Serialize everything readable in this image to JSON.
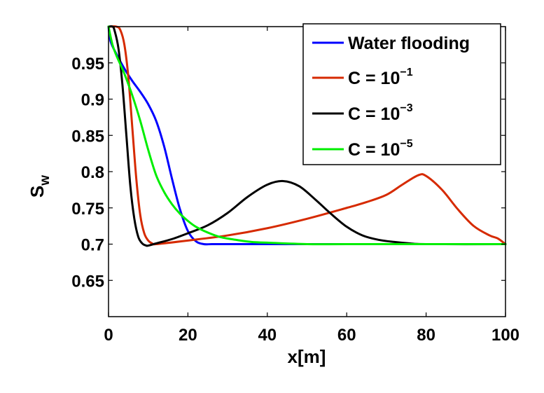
{
  "chart_data": {
    "type": "line",
    "title": "",
    "xlabel": "x[m]",
    "ylabel": "S",
    "ylabel_subscript": "w",
    "xlim": [
      0,
      100
    ],
    "ylim": [
      0.6,
      1.0
    ],
    "xticks": [
      0,
      20,
      40,
      60,
      80,
      100
    ],
    "xtick_labels": [
      "0",
      "20",
      "40",
      "60",
      "80",
      "100"
    ],
    "yticks": [
      0.65,
      0.7,
      0.75,
      0.8,
      0.85,
      0.9,
      0.95
    ],
    "ytick_labels": [
      "0.65",
      "0.7",
      "0.75",
      "0.8",
      "0.85",
      "0.9",
      "0.95"
    ],
    "grid": false,
    "legend_position": "top-right",
    "series": [
      {
        "name": "Water flooding",
        "legend_base": "Water flooding",
        "legend_exp": "",
        "color": "#0000ff",
        "x": [
          0,
          0.5,
          2,
          4,
          6,
          8,
          10,
          12,
          14,
          16,
          18,
          20,
          22,
          24,
          26,
          30,
          40,
          60,
          80,
          100
        ],
        "y": [
          1.0,
          0.98,
          0.962,
          0.942,
          0.925,
          0.91,
          0.893,
          0.87,
          0.835,
          0.79,
          0.748,
          0.718,
          0.704,
          0.7,
          0.7,
          0.7,
          0.7,
          0.7,
          0.7,
          0.7
        ]
      },
      {
        "name": "C = 10^-1",
        "legend_base": "C = 10",
        "legend_exp": "−1",
        "color": "#d62a00",
        "x": [
          0,
          2,
          3,
          4,
          5,
          6,
          7,
          8,
          9,
          10,
          11,
          12,
          20,
          30,
          40,
          50,
          60,
          65,
          70,
          74,
          78,
          80,
          84,
          88,
          92,
          96,
          98,
          100
        ],
        "y": [
          1.0,
          1.0,
          0.995,
          0.975,
          0.93,
          0.86,
          0.79,
          0.74,
          0.715,
          0.705,
          0.701,
          0.7,
          0.705,
          0.712,
          0.722,
          0.735,
          0.75,
          0.758,
          0.768,
          0.782,
          0.795,
          0.794,
          0.775,
          0.748,
          0.725,
          0.712,
          0.708,
          0.7
        ]
      },
      {
        "name": "C = 10^-3",
        "legend_base": "C = 10",
        "legend_exp": "−3",
        "color": "#000000",
        "x": [
          0,
          1,
          1.5,
          2.5,
          3.5,
          4.5,
          5.5,
          6.5,
          7.5,
          8.5,
          9.5,
          10,
          12,
          16,
          20,
          25,
          30,
          35,
          40,
          44,
          48,
          52,
          56,
          60,
          64,
          68,
          72,
          76,
          80,
          100
        ],
        "y": [
          1.0,
          1.0,
          0.995,
          0.97,
          0.92,
          0.85,
          0.78,
          0.735,
          0.71,
          0.701,
          0.698,
          0.698,
          0.701,
          0.707,
          0.715,
          0.726,
          0.743,
          0.765,
          0.782,
          0.787,
          0.78,
          0.762,
          0.742,
          0.724,
          0.712,
          0.706,
          0.703,
          0.701,
          0.7,
          0.7
        ]
      },
      {
        "name": "C = 10^-5",
        "legend_base": "C = 10",
        "legend_exp": "−5",
        "color": "#00ee00",
        "x": [
          0,
          1,
          2,
          4,
          6,
          8,
          10,
          12,
          14,
          16,
          18,
          20,
          22,
          25,
          28,
          32,
          36,
          40,
          50,
          60,
          80,
          100
        ],
        "y": [
          1.0,
          0.975,
          0.96,
          0.935,
          0.905,
          0.87,
          0.83,
          0.795,
          0.772,
          0.755,
          0.742,
          0.732,
          0.724,
          0.716,
          0.71,
          0.706,
          0.703,
          0.702,
          0.7,
          0.7,
          0.7,
          0.7
        ]
      }
    ]
  }
}
